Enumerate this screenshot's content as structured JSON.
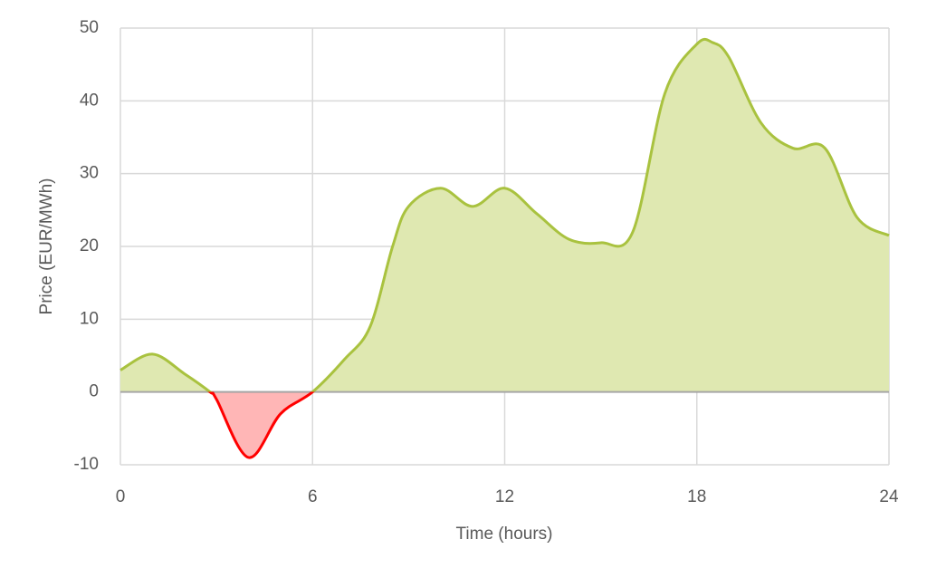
{
  "chart_data": {
    "type": "area",
    "x_label": "Time (hours)",
    "y_label": "Price (EUR/MWh)",
    "x": [
      0,
      1,
      2,
      2.8,
      3,
      4,
      5,
      6,
      7,
      7.8,
      8.5,
      9,
      10,
      11,
      12,
      13,
      14,
      15,
      16,
      17,
      18,
      18.5,
      19,
      20,
      21,
      22,
      23,
      24
    ],
    "series": [
      {
        "name": "Price",
        "values": [
          3,
          5.2,
          2.5,
          0,
          -1,
          -9,
          -3,
          0,
          4.5,
          9,
          20,
          25.5,
          28,
          25.5,
          28,
          24.5,
          21,
          20.5,
          22,
          41,
          47.8,
          48,
          46,
          37,
          33.5,
          33.5,
          24,
          21.5
        ]
      }
    ],
    "positive_color": "#a9c23f",
    "positive_fill": "#dfe8b1",
    "negative_color": "#ff0000",
    "negative_fill": "#ffb6b6",
    "xlim": [
      0,
      24
    ],
    "xticks": [
      0,
      6,
      12,
      18,
      24
    ],
    "ylim": [
      -10,
      50
    ],
    "yticks": [
      -10,
      0,
      10,
      20,
      30,
      40,
      50
    ],
    "grid": true
  }
}
